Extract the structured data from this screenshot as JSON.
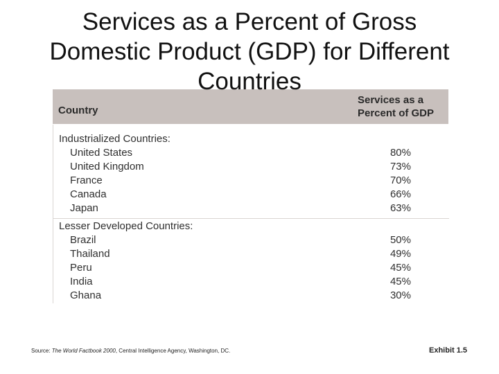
{
  "title": {
    "line1": "Services as a Percent of Gross",
    "line2": "Domestic Product (GDP) for Different",
    "line3": "Countries"
  },
  "table": {
    "header": {
      "country": "Country",
      "percent_line1": "Services as a",
      "percent_line2": "Percent of GDP"
    },
    "groups": [
      {
        "label": "Industrialized Countries:",
        "rows": [
          {
            "country": "United States",
            "percent": "80%"
          },
          {
            "country": "United Kingdom",
            "percent": "73%"
          },
          {
            "country": "France",
            "percent": "70%"
          },
          {
            "country": "Canada",
            "percent": "66%"
          },
          {
            "country": "Japan",
            "percent": "63%"
          }
        ]
      },
      {
        "label": "Lesser Developed Countries:",
        "rows": [
          {
            "country": "Brazil",
            "percent": "50%"
          },
          {
            "country": "Thailand",
            "percent": "49%"
          },
          {
            "country": "Peru",
            "percent": "45%"
          },
          {
            "country": "India",
            "percent": "45%"
          },
          {
            "country": "Ghana",
            "percent": "30%"
          }
        ]
      }
    ]
  },
  "footer": {
    "source_prefix": "Source: ",
    "source_title": "The World Factbook 2000",
    "source_rest": ", Central Intelligence Agency, Washington, DC.",
    "exhibit": "Exhibit 1.5"
  }
}
